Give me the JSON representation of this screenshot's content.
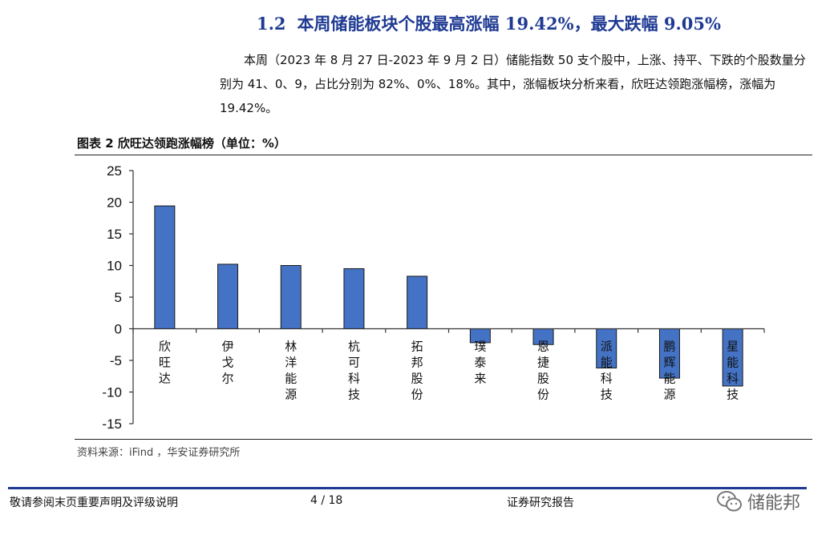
{
  "section": {
    "number": "1.2",
    "title": "本周储能板块个股最高涨幅 19.42%，最大跌幅 9.05%"
  },
  "paragraph": "本周（2023 年 8 月 27 日-2023 年 9 月 2 日）储能指数 50 支个股中，上涨、持平、下跌的个股数量分别为 41、0、9，占比分别为 82%、0%、18%。其中，涨幅板块分析来看，欣旺达领跑涨幅榜，涨幅为 19.42%。",
  "figure": {
    "caption": "图表 2 欣旺达领跑涨幅榜（单位：%）",
    "source": "资料来源：iFind ，华安证券研究所"
  },
  "chart_data": {
    "type": "bar",
    "categories": [
      "欣旺达",
      "伊戈尔",
      "林洋能源",
      "杭可科技",
      "拓邦股份",
      "璞泰来",
      "恩捷股份",
      "派能科技",
      "鹏辉能源",
      "星能科技"
    ],
    "values": [
      19.42,
      10.2,
      10.0,
      9.5,
      8.3,
      -2.2,
      -2.5,
      -6.2,
      -7.8,
      -9.05
    ],
    "ylim": [
      -15,
      25
    ],
    "yticks": [
      25,
      20,
      15,
      10,
      5,
      0,
      -5,
      -10,
      -15
    ],
    "bar_color": "#4472c4",
    "grid": false,
    "title": "",
    "xlabel": "",
    "ylabel": ""
  },
  "footer": {
    "disclaimer": "敬请参阅末页重要声明及评级说明",
    "page": "4 / 18",
    "report_type": "证券研究报告",
    "brand_color": "#1f3a93"
  },
  "watermark": {
    "text": "储能邦",
    "icon": "wechat-icon"
  }
}
